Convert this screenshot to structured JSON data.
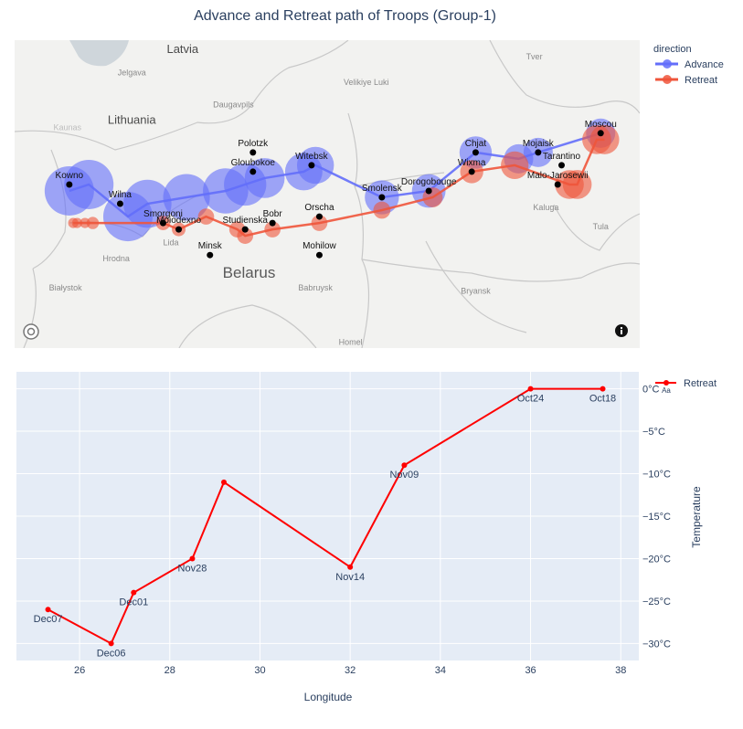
{
  "title": "Advance and Retreat path of Troops (Group-1)",
  "map": {
    "basemap_labels": [
      {
        "text": "Latvia",
        "lon": 26.9,
        "lat": 57.05,
        "cls": "country"
      },
      {
        "text": "Lithuania",
        "lon": 25.6,
        "lat": 55.95,
        "cls": "country"
      },
      {
        "text": "Belarus",
        "lon": 28.6,
        "lat": 53.55,
        "cls": "country-big"
      },
      {
        "text": "Jelgava",
        "lon": 25.6,
        "lat": 56.7,
        "cls": "city"
      },
      {
        "text": "Daugavpils",
        "lon": 28.2,
        "lat": 56.2,
        "cls": "city"
      },
      {
        "text": "Velikiye Luki",
        "lon": 31.6,
        "lat": 56.55,
        "cls": "city"
      },
      {
        "text": "Tver",
        "lon": 35.9,
        "lat": 56.95,
        "cls": "city"
      },
      {
        "text": "Kaluga",
        "lon": 36.2,
        "lat": 54.6,
        "cls": "city"
      },
      {
        "text": "Tula",
        "lon": 37.6,
        "lat": 54.3,
        "cls": "city"
      },
      {
        "text": "Lida",
        "lon": 26.6,
        "lat": 54.05,
        "cls": "city"
      },
      {
        "text": "Hrodna",
        "lon": 25.2,
        "lat": 53.8,
        "cls": "city"
      },
      {
        "text": "Białystok",
        "lon": 23.9,
        "lat": 53.35,
        "cls": "city"
      },
      {
        "text": "Babruysk",
        "lon": 30.3,
        "lat": 53.35,
        "cls": "city"
      },
      {
        "text": "Bryansk",
        "lon": 34.4,
        "lat": 53.3,
        "cls": "city"
      },
      {
        "text": "Homel",
        "lon": 31.2,
        "lat": 52.5,
        "cls": "city"
      },
      {
        "text": "Kaunas",
        "lon": 23.95,
        "lat": 55.85,
        "cls": "city-faint"
      }
    ],
    "cities": [
      {
        "name": "Kowno",
        "lon": 24.0,
        "lat": 55.0
      },
      {
        "name": "Wilna",
        "lon": 25.3,
        "lat": 54.7
      },
      {
        "name": "Smorgoni",
        "lon": 26.4,
        "lat": 54.4
      },
      {
        "name": "Moiodexno",
        "lon": 26.8,
        "lat": 54.3
      },
      {
        "name": "Gloubokoe",
        "lon": 28.7,
        "lat": 55.2
      },
      {
        "name": "Minsk",
        "lon": 27.6,
        "lat": 53.9
      },
      {
        "name": "Studienska",
        "lon": 28.5,
        "lat": 54.3
      },
      {
        "name": "Polotzk",
        "lon": 28.7,
        "lat": 55.5
      },
      {
        "name": "Bobr",
        "lon": 29.2,
        "lat": 54.4
      },
      {
        "name": "Witebsk",
        "lon": 30.2,
        "lat": 55.3
      },
      {
        "name": "Orscha",
        "lon": 30.4,
        "lat": 54.5
      },
      {
        "name": "Mohilow",
        "lon": 30.4,
        "lat": 53.9
      },
      {
        "name": "Smolensk",
        "lon": 32.0,
        "lat": 54.8
      },
      {
        "name": "Dorogobouge",
        "lon": 33.2,
        "lat": 54.9
      },
      {
        "name": "Wixma",
        "lon": 34.3,
        "lat": 55.2
      },
      {
        "name": "Chjat",
        "lon": 34.4,
        "lat": 55.5
      },
      {
        "name": "Mojaisk",
        "lon": 36.0,
        "lat": 55.5
      },
      {
        "name": "Moscou",
        "lon": 37.6,
        "lat": 55.8
      },
      {
        "name": "Tarantino",
        "lon": 36.6,
        "lat": 55.3
      },
      {
        "name": "Malo-Jarosewii",
        "lon": 36.5,
        "lat": 55.0
      }
    ],
    "advance": [
      {
        "lon": 24.0,
        "lat": 54.9,
        "survivors": 340000
      },
      {
        "lon": 24.5,
        "lat": 55.0,
        "survivors": 340000
      },
      {
        "lon": 25.5,
        "lat": 54.5,
        "survivors": 340000
      },
      {
        "lon": 26.0,
        "lat": 54.7,
        "survivors": 320000
      },
      {
        "lon": 27.0,
        "lat": 54.8,
        "survivors": 300000
      },
      {
        "lon": 28.0,
        "lat": 54.9,
        "survivors": 280000
      },
      {
        "lon": 28.5,
        "lat": 55.0,
        "survivors": 240000
      },
      {
        "lon": 29.0,
        "lat": 55.1,
        "survivors": 210000
      },
      {
        "lon": 30.0,
        "lat": 55.2,
        "survivors": 180000
      },
      {
        "lon": 30.3,
        "lat": 55.3,
        "survivors": 175000
      },
      {
        "lon": 32.0,
        "lat": 54.8,
        "survivors": 145000
      },
      {
        "lon": 33.2,
        "lat": 54.9,
        "survivors": 140000
      },
      {
        "lon": 34.4,
        "lat": 55.5,
        "survivors": 127100
      },
      {
        "lon": 35.5,
        "lat": 55.4,
        "survivors": 100000
      },
      {
        "lon": 36.0,
        "lat": 55.5,
        "survivors": 100000
      },
      {
        "lon": 37.6,
        "lat": 55.8,
        "survivors": 100000
      }
    ],
    "retreat": [
      {
        "lon": 37.7,
        "lat": 55.7,
        "survivors": 100000
      },
      {
        "lon": 37.5,
        "lat": 55.7,
        "survivors": 98000
      },
      {
        "lon": 37.0,
        "lat": 55.0,
        "survivors": 97000
      },
      {
        "lon": 36.8,
        "lat": 55.0,
        "survivors": 96000
      },
      {
        "lon": 35.4,
        "lat": 55.3,
        "survivors": 87000
      },
      {
        "lon": 34.3,
        "lat": 55.2,
        "survivors": 55000
      },
      {
        "lon": 33.3,
        "lat": 54.8,
        "survivors": 37000
      },
      {
        "lon": 32.0,
        "lat": 54.6,
        "survivors": 24000
      },
      {
        "lon": 30.4,
        "lat": 54.4,
        "survivors": 20000
      },
      {
        "lon": 29.2,
        "lat": 54.3,
        "survivors": 20000
      },
      {
        "lon": 28.5,
        "lat": 54.2,
        "survivors": 20000
      },
      {
        "lon": 28.3,
        "lat": 54.3,
        "survivors": 20000
      },
      {
        "lon": 27.5,
        "lat": 54.5,
        "survivors": 20000
      },
      {
        "lon": 26.8,
        "lat": 54.3,
        "survivors": 12000
      },
      {
        "lon": 26.4,
        "lat": 54.4,
        "survivors": 14000
      },
      {
        "lon": 24.6,
        "lat": 54.4,
        "survivors": 8000
      },
      {
        "lon": 24.4,
        "lat": 54.4,
        "survivors": 4000
      },
      {
        "lon": 24.2,
        "lat": 54.4,
        "survivors": 4000
      },
      {
        "lon": 24.1,
        "lat": 54.4,
        "survivors": 4000
      }
    ]
  },
  "legend": {
    "title": "direction",
    "items": [
      {
        "name": "Advance",
        "color": "#636efa"
      },
      {
        "name": "Retreat",
        "color": "#ef553b"
      }
    ]
  },
  "chart_data": {
    "type": "line",
    "xlabel": "Longitude",
    "ylabel": "Temperature",
    "xlim": [
      24.6,
      38.4
    ],
    "ylim": [
      -32,
      2
    ],
    "x_ticks": [
      26,
      28,
      30,
      32,
      34,
      36,
      38
    ],
    "y_ticks": [
      0,
      -5,
      -10,
      -15,
      -20,
      -25,
      -30
    ],
    "y_tick_suffix": "°C",
    "series": [
      {
        "name": "Retreat",
        "color": "#ff0000",
        "points": [
          {
            "x": 37.6,
            "y": 0,
            "label": "Oct18"
          },
          {
            "x": 36.0,
            "y": 0,
            "label": "Oct24"
          },
          {
            "x": 33.2,
            "y": -9,
            "label": "Nov09"
          },
          {
            "x": 32.0,
            "y": -21,
            "label": "Nov14"
          },
          {
            "x": 29.2,
            "y": -11,
            "label": ""
          },
          {
            "x": 28.5,
            "y": -20,
            "label": "Nov28"
          },
          {
            "x": 27.2,
            "y": -24,
            "label": "Dec01"
          },
          {
            "x": 26.7,
            "y": -30,
            "label": "Dec06"
          },
          {
            "x": 25.3,
            "y": -26,
            "label": "Dec07"
          }
        ]
      }
    ]
  }
}
